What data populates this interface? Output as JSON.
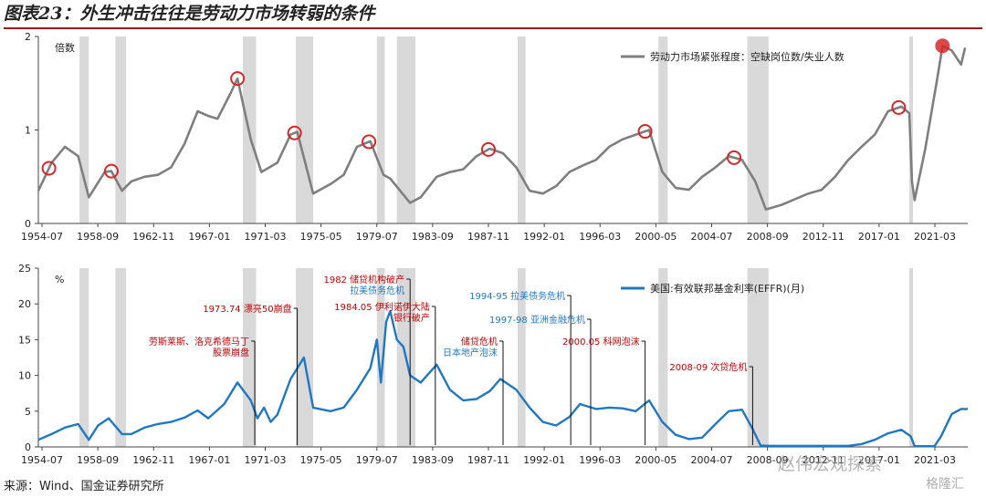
{
  "title": "图表23：外生冲击往往是劳动力市场转弱的条件",
  "source": "来源：Wind、国金证券研究所",
  "watermark": "赵伟宏观探索",
  "watermark2": "格隆汇",
  "colors": {
    "line_top": "#7f7f7f",
    "line_bottom": "#1f78c1",
    "recession": "#d9d9d9",
    "circle": "#d62728",
    "ann_red": "#c00000",
    "ann_blue": "#1f78c1"
  },
  "chart_data": [
    {
      "type": "line",
      "ylabel": "倍数",
      "ylim": [
        0,
        2.0
      ],
      "yticks": [
        "0",
        "1",
        "2"
      ],
      "xlim": [
        1954.5,
        2024.5
      ],
      "xticks": [
        "1954-07",
        "1958-09",
        "1962-11",
        "1967-01",
        "1971-03",
        "1975-05",
        "1979-07",
        "1983-09",
        "1987-11",
        "1992-01",
        "1996-03",
        "2000-05",
        "2004-07",
        "2008-09",
        "2012-11",
        "2017-01",
        "2021-03"
      ],
      "legend_position": "top-right",
      "series": [
        {
          "name": "劳动力市场紧张程度：空缺岗位数/失业人数",
          "x": [
            1954.5,
            1955.5,
            1956.5,
            1957.5,
            1958.3,
            1959.5,
            1960.0,
            1960.8,
            1961.5,
            1962.5,
            1963.5,
            1964.5,
            1965.5,
            1966.5,
            1967.3,
            1968.0,
            1969.0,
            1969.5,
            1970.5,
            1971.3,
            1972.5,
            1973.5,
            1974.0,
            1975.2,
            1976.5,
            1977.5,
            1978.5,
            1979.5,
            1980.5,
            1981.0,
            1982.5,
            1983.3,
            1984.5,
            1985.5,
            1986.5,
            1987.5,
            1988.5,
            1989.5,
            1990.5,
            1991.5,
            1992.5,
            1993.5,
            1994.5,
            1995.5,
            1996.5,
            1997.5,
            1998.5,
            1999.5,
            2000.5,
            2001.5,
            2002.5,
            2003.5,
            2004.5,
            2005.5,
            2006.5,
            2007.5,
            2008.5,
            2009.3,
            2010.5,
            2011.5,
            2012.5,
            2013.5,
            2014.5,
            2015.5,
            2016.5,
            2017.5,
            2018.5,
            2019.5,
            2020.1,
            2020.3,
            2020.5,
            2021.3,
            2022.2,
            2022.6,
            2023.3,
            2024.0,
            2024.3
          ],
          "values": [
            0.35,
            0.65,
            0.82,
            0.72,
            0.28,
            0.55,
            0.56,
            0.35,
            0.45,
            0.5,
            0.52,
            0.6,
            0.85,
            1.2,
            1.15,
            1.12,
            1.4,
            1.55,
            0.9,
            0.55,
            0.65,
            0.95,
            0.98,
            0.32,
            0.42,
            0.52,
            0.82,
            0.88,
            0.52,
            0.48,
            0.22,
            0.28,
            0.5,
            0.55,
            0.58,
            0.72,
            0.8,
            0.75,
            0.6,
            0.35,
            0.32,
            0.4,
            0.55,
            0.62,
            0.68,
            0.82,
            0.9,
            0.95,
            1.0,
            0.55,
            0.38,
            0.36,
            0.5,
            0.6,
            0.72,
            0.68,
            0.45,
            0.15,
            0.2,
            0.26,
            0.32,
            0.36,
            0.5,
            0.68,
            0.82,
            0.95,
            1.2,
            1.25,
            1.18,
            0.45,
            0.25,
            0.8,
            1.55,
            1.9,
            1.85,
            1.7,
            1.88
          ]
        }
      ],
      "markers": [
        1955.3,
        1960.0,
        1969.5,
        1973.8,
        1979.4,
        1988.4,
        2000.2,
        2006.9,
        2019.3,
        2022.6
      ]
    },
    {
      "type": "line",
      "ylabel": "%",
      "ylim": [
        0,
        25
      ],
      "yticks": [
        "0",
        "5",
        "10",
        "15",
        "20",
        "25"
      ],
      "xlim": [
        1954.5,
        2024.5
      ],
      "xticks": [
        "1954-07",
        "1958-09",
        "1962-11",
        "1967-01",
        "1971-03",
        "1975-05",
        "1979-07",
        "1983-09",
        "1987-11",
        "1992-01",
        "1996-03",
        "2000-05",
        "2004-07",
        "2008-09",
        "2012-11",
        "2017-01",
        "2021-03"
      ],
      "legend_position": "top-right",
      "series": [
        {
          "name": "美国:有效联邦基金利率(EFFR)(月)",
          "x": [
            1954.5,
            1955.5,
            1956.5,
            1957.5,
            1958.3,
            1959.0,
            1959.8,
            1960.8,
            1961.5,
            1962.5,
            1963.5,
            1964.5,
            1965.5,
            1966.5,
            1967.3,
            1968.5,
            1969.5,
            1970.5,
            1971.0,
            1971.5,
            1972.0,
            1972.5,
            1973.5,
            1974.5,
            1975.2,
            1976.5,
            1977.5,
            1978.5,
            1979.5,
            1980.0,
            1980.3,
            1980.7,
            1981.0,
            1981.5,
            1982.0,
            1982.5,
            1983.3,
            1984.5,
            1985.5,
            1986.5,
            1987.5,
            1988.5,
            1989.3,
            1990.5,
            1991.5,
            1992.5,
            1993.5,
            1994.5,
            1995.3,
            1996.5,
            1997.5,
            1998.5,
            1999.5,
            2000.5,
            2001.5,
            2002.5,
            2003.5,
            2004.5,
            2005.5,
            2006.5,
            2007.5,
            2008.3,
            2008.9,
            2009.5,
            2012.0,
            2015.5,
            2016.5,
            2017.5,
            2018.5,
            2019.5,
            2020.2,
            2020.5,
            2022.0,
            2022.5,
            2023.3,
            2024.0,
            2024.5
          ],
          "values": [
            1.0,
            1.8,
            2.7,
            3.2,
            1.0,
            3.0,
            4.0,
            1.8,
            1.8,
            2.7,
            3.2,
            3.5,
            4.1,
            5.1,
            4.0,
            6.0,
            9.0,
            6.5,
            4.0,
            5.5,
            3.5,
            4.5,
            9.5,
            12.5,
            5.5,
            5.0,
            5.5,
            8.0,
            11.0,
            15.0,
            9.0,
            17.5,
            19.0,
            15.0,
            14.0,
            10.0,
            9.0,
            11.5,
            8.0,
            6.5,
            6.7,
            7.8,
            9.5,
            8.0,
            5.5,
            3.5,
            3.0,
            4.2,
            6.0,
            5.3,
            5.5,
            5.4,
            5.0,
            6.5,
            3.5,
            1.7,
            1.1,
            1.3,
            3.2,
            5.0,
            5.2,
            2.5,
            0.2,
            0.15,
            0.15,
            0.15,
            0.4,
            1.0,
            1.9,
            2.4,
            1.5,
            0.1,
            0.1,
            1.5,
            4.6,
            5.3,
            5.3
          ]
        }
      ]
    }
  ],
  "recessions": [
    [
      1957.6,
      1958.3
    ],
    [
      1960.3,
      1961.1
    ],
    [
      1969.9,
      1970.9
    ],
    [
      1973.9,
      1975.2
    ],
    [
      1980.0,
      1980.6
    ],
    [
      1981.5,
      1982.9
    ],
    [
      1990.6,
      1991.2
    ],
    [
      2001.2,
      2001.9
    ],
    [
      2007.9,
      2009.5
    ],
    [
      2020.1,
      2020.3
    ]
  ],
  "annotations": [
    {
      "text": "劳斯莱斯、洛克希德马丁",
      "color": "red",
      "x": 1970.8
    },
    {
      "text": "股票崩盘",
      "color": "red",
      "x": 1970.8
    },
    {
      "text": "1973.74 漂亮50崩盘",
      "color": "red",
      "x": 1974.0
    },
    {
      "text": "1982 储贷机构破产",
      "color": "red",
      "x": 1982.5
    },
    {
      "text": "拉美债务危机",
      "color": "blue",
      "x": 1982.5
    },
    {
      "text": "1984.05 伊利诺伊大陆",
      "color": "red",
      "x": 1984.4
    },
    {
      "text": "银行破产",
      "color": "red",
      "x": 1984.4
    },
    {
      "text": "储贷危机",
      "color": "red",
      "x": 1989.5
    },
    {
      "text": "日本地产泡沫",
      "color": "blue",
      "x": 1989.5
    },
    {
      "text": "1994-95 拉美债务危机",
      "color": "blue",
      "x": 1994.6
    },
    {
      "text": "1997-98 亚洲金融危机",
      "color": "blue",
      "x": 1996.1
    },
    {
      "text": "2000.05 科网泡沫",
      "color": "red",
      "x": 2000.2
    },
    {
      "text": "2008-09 次贷危机",
      "color": "red",
      "x": 2008.3
    }
  ]
}
